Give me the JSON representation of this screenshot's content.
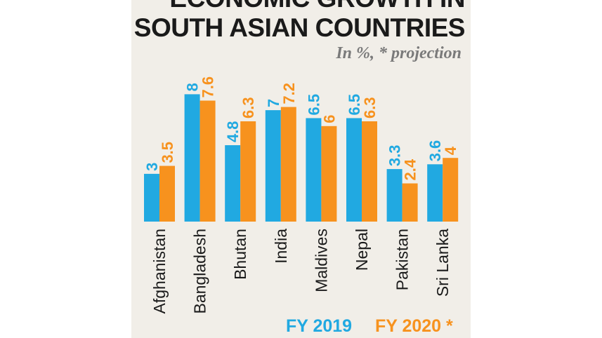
{
  "chart_data": {
    "type": "bar",
    "title_lines": [
      "ECONOMIC GROWTH IN",
      "SOUTH ASIAN COUNTRIES"
    ],
    "subtitle": "In %, * projection",
    "categories": [
      "Afghanistan",
      "Bangladesh",
      "Bhutan",
      "India",
      "Maldives",
      "Nepal",
      "Pakistan",
      "Sri Lanka"
    ],
    "series": [
      {
        "name": "FY 2019",
        "color": "#21a9e1",
        "values": [
          3,
          8,
          4.8,
          7,
          6.5,
          6.5,
          3.3,
          3.6
        ]
      },
      {
        "name": "FY 2020 *",
        "color": "#f7921e",
        "values": [
          3.5,
          7.6,
          6.3,
          7.2,
          6,
          6.3,
          2.4,
          4
        ]
      }
    ],
    "ylim": [
      0,
      8
    ],
    "grid": false,
    "legend_position": "bottom-right"
  }
}
